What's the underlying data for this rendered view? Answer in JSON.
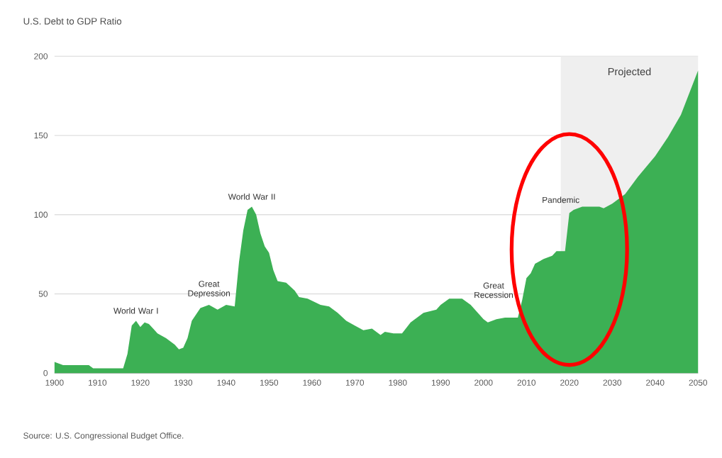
{
  "chart_data": {
    "type": "area",
    "ylabel": "U.S. Debt to GDP Ratio",
    "x": [
      1900,
      1901,
      1902,
      1908,
      1909,
      1916,
      1917,
      1918,
      1919,
      1920,
      1921,
      1922,
      1923,
      1924,
      1926,
      1928,
      1929,
      1930,
      1931,
      1932,
      1934,
      1936,
      1938,
      1940,
      1942,
      1943,
      1944,
      1945,
      1946,
      1947,
      1948,
      1949,
      1950,
      1951,
      1952,
      1954,
      1956,
      1957,
      1959,
      1962,
      1964,
      1966,
      1968,
      1970,
      1972,
      1974,
      1976,
      1977,
      1979,
      1981,
      1983,
      1986,
      1989,
      1990,
      1992,
      1995,
      1997,
      2000,
      2001,
      2003,
      2005,
      2008,
      2009,
      2010,
      2011,
      2012,
      2014,
      2016,
      2017,
      2019,
      2020,
      2021,
      2023,
      2027,
      2028,
      2030,
      2033,
      2036,
      2040,
      2043,
      2046,
      2050
    ],
    "values": [
      7,
      6,
      5,
      5,
      3,
      3,
      12,
      30,
      33,
      29,
      32,
      31,
      28,
      25,
      22,
      18,
      15,
      16,
      22,
      33,
      41,
      43,
      40,
      43,
      42,
      70,
      90,
      103,
      105,
      100,
      88,
      80,
      76,
      65,
      58,
      57,
      52,
      48,
      47,
      43,
      42,
      38,
      33,
      30,
      27,
      28,
      24,
      26,
      25,
      25,
      32,
      38,
      40,
      43,
      47,
      47,
      43,
      34,
      32,
      34,
      35,
      35,
      46,
      60,
      63,
      69,
      72,
      74,
      77,
      77,
      101,
      103,
      105,
      105,
      104,
      107,
      113,
      124,
      137,
      149,
      163,
      191
    ],
    "color": "#3cb054",
    "xlim": [
      1900,
      2050
    ],
    "xticks": [
      1900,
      1910,
      1920,
      1930,
      1940,
      1950,
      1960,
      1970,
      1980,
      1990,
      2000,
      2010,
      2020,
      2030,
      2040,
      2050
    ],
    "ylim": [
      0,
      200
    ],
    "yticks": [
      0,
      50,
      100,
      150,
      200
    ],
    "grid": "y",
    "bands": [
      {
        "axis": "x",
        "from": 2018,
        "to": 2050,
        "label": "Projected",
        "color": "#efefef"
      }
    ],
    "annotations": [
      {
        "text": "World War I",
        "x": 1919,
        "y": 36
      },
      {
        "text": "Great Depression",
        "x": 1936,
        "y": 46
      },
      {
        "text": "World War II",
        "x": 1946,
        "y": 108
      },
      {
        "text": "Great Recession",
        "x": 2009,
        "y": 46
      },
      {
        "text": "Pandemic",
        "x": 2018,
        "y": 106
      },
      "Source: U.S. Congressional Budget Office."
    ]
  }
}
